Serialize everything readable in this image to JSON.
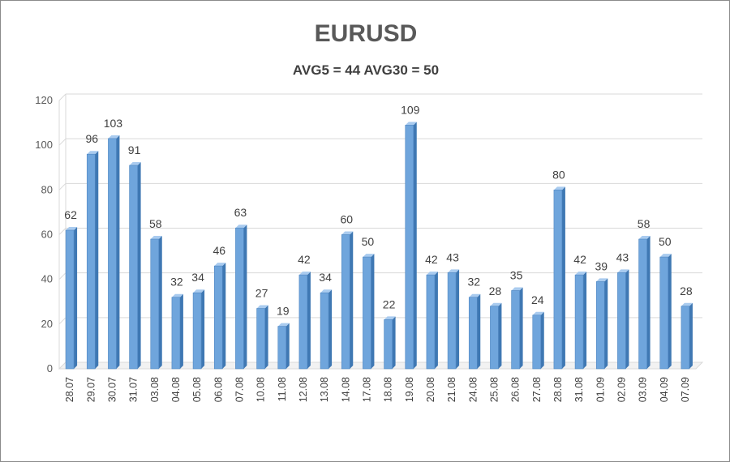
{
  "chart_data": {
    "type": "bar",
    "title": "EURUSD",
    "subtitle": "AVG5 = 44 AVG30 = 50",
    "categories": [
      "28.07",
      "29.07",
      "30.07",
      "31.07",
      "03.08",
      "04.08",
      "05.08",
      "06.08",
      "07.08",
      "10.08",
      "11.08",
      "12.08",
      "13.08",
      "14.08",
      "17.08",
      "18.08",
      "19.08",
      "20.08",
      "21.08",
      "24.08",
      "25.08",
      "26.08",
      "27.08",
      "28.08",
      "31.08",
      "01.09",
      "02.09",
      "03.09",
      "04.09",
      "07.09"
    ],
    "values": [
      62,
      96,
      103,
      91,
      58,
      32,
      34,
      46,
      63,
      27,
      19,
      42,
      34,
      60,
      50,
      22,
      109,
      42,
      43,
      32,
      28,
      35,
      24,
      80,
      42,
      39,
      43,
      58,
      50,
      28
    ],
    "ylim": [
      0,
      120
    ],
    "yticks": [
      0,
      20,
      40,
      60,
      80,
      100,
      120
    ],
    "grid": true,
    "legend": "none",
    "colors": {
      "bar_front": "#6fa5dc",
      "bar_side": "#3f78b3",
      "bar_top": "#a9cbef",
      "grid": "#d9d9d9"
    }
  }
}
